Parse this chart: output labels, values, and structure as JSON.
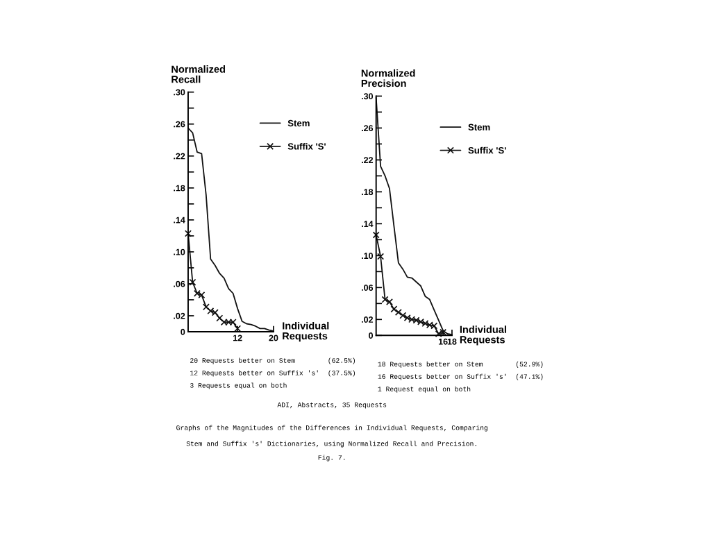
{
  "chart_data": [
    {
      "type": "line",
      "ylabel": "Normalized\nRecall",
      "xlabel": "Individual\nRequests",
      "xlim": [
        1,
        20
      ],
      "xticks": [
        12,
        20
      ],
      "ylim": [
        0,
        0.3
      ],
      "yticks": [
        0,
        {
          "value": 0.02,
          "label": ".02"
        },
        {
          "value": 0.04,
          "label": null
        },
        {
          "value": 0.06,
          "label": ".06"
        },
        {
          "value": 0.08,
          "label": null
        },
        {
          "value": 0.1,
          "label": ".10"
        },
        {
          "value": 0.12,
          "label": null
        },
        {
          "value": 0.14,
          "label": ".14"
        },
        {
          "value": 0.16,
          "label": null
        },
        {
          "value": 0.18,
          "label": ".18"
        },
        {
          "value": 0.2,
          "label": null
        },
        {
          "value": 0.22,
          "label": ".22"
        },
        {
          "value": 0.24,
          "label": null
        },
        {
          "value": 0.26,
          "label": ".26"
        },
        {
          "value": 0.28,
          "label": null
        },
        {
          "value": 0.3,
          "label": ".30"
        }
      ],
      "legend": "right",
      "series": [
        {
          "name": "Stem",
          "color": "#111111",
          "marker": "none",
          "x": [
            1,
            2,
            3,
            4,
            5,
            6,
            7,
            8,
            9,
            10,
            11,
            12,
            13,
            14,
            15,
            16,
            17,
            18,
            19,
            20
          ],
          "values": [
            0.255,
            0.249,
            0.225,
            0.223,
            0.171,
            0.091,
            0.083,
            0.073,
            0.067,
            0.054,
            0.048,
            0.029,
            0.013,
            0.01,
            0.009,
            0.007,
            0.004,
            0.004,
            0.002,
            0.001
          ]
        },
        {
          "name": "Suffix 'S'",
          "color": "#111111",
          "marker": "cross",
          "x": [
            1,
            2,
            3,
            4,
            5,
            6,
            7,
            8,
            9,
            10,
            11,
            12
          ],
          "values": [
            0.123,
            0.062,
            0.048,
            0.046,
            0.031,
            0.026,
            0.024,
            0.017,
            0.012,
            0.012,
            0.012,
            0.004
          ]
        }
      ],
      "annotations": [
        "20 Requests better on Stem        (62.5%)",
        "12 Requests better on Suffix 's'  (37.5%)",
        "3 Requests equal on both"
      ]
    },
    {
      "type": "line",
      "ylabel": "Normalized\nPrecision",
      "xlabel": "Individual\nRequests",
      "xlim": [
        1,
        18
      ],
      "xticks": [
        16,
        18
      ],
      "ylim": [
        0,
        0.3
      ],
      "yticks": [
        0,
        {
          "value": 0.02,
          "label": ".02"
        },
        {
          "value": 0.04,
          "label": null
        },
        {
          "value": 0.06,
          "label": ".06"
        },
        {
          "value": 0.08,
          "label": null
        },
        {
          "value": 0.1,
          "label": ".10"
        },
        {
          "value": 0.12,
          "label": null
        },
        {
          "value": 0.14,
          "label": ".14"
        },
        {
          "value": 0.16,
          "label": null
        },
        {
          "value": 0.18,
          "label": ".18"
        },
        {
          "value": 0.2,
          "label": null
        },
        {
          "value": 0.22,
          "label": ".22"
        },
        {
          "value": 0.24,
          "label": null
        },
        {
          "value": 0.26,
          "label": ".26"
        },
        {
          "value": 0.28,
          "label": null
        },
        {
          "value": 0.3,
          "label": ".30"
        }
      ],
      "legend": "right",
      "series": [
        {
          "name": "Stem",
          "color": "#111111",
          "marker": "none",
          "x": [
            1,
            2,
            3,
            4,
            5,
            6,
            7,
            8,
            9,
            10,
            11,
            12,
            13,
            14,
            15,
            16,
            17,
            18
          ],
          "values": [
            0.298,
            0.212,
            0.2,
            0.184,
            0.137,
            0.091,
            0.083,
            0.073,
            0.072,
            0.067,
            0.062,
            0.049,
            0.045,
            0.032,
            0.019,
            0.006,
            0.002,
            0.001
          ]
        },
        {
          "name": "Suffix 'S'",
          "color": "#111111",
          "marker": "cross",
          "x": [
            1,
            2,
            3,
            4,
            5,
            6,
            7,
            8,
            9,
            10,
            11,
            12,
            13,
            14,
            15,
            16
          ],
          "values": [
            0.126,
            0.099,
            0.045,
            0.042,
            0.033,
            0.029,
            0.025,
            0.022,
            0.02,
            0.019,
            0.017,
            0.015,
            0.013,
            0.012,
            0.002,
            0.004
          ]
        }
      ],
      "annotations": [
        "18 Requests better on Stem        (52.9%)",
        "16 Requests better on Suffix 's'  (47.1%)",
        "1 Request equal on both",
        "ADI, Abstracts, 35 Requests",
        "Graphs of the Magnitudes of the Differences in Individual Requests, Comparing",
        "Stem and Suffix 's' Dictionaries, using Normalized Recall and Precision.",
        "Fig. 7."
      ]
    }
  ]
}
